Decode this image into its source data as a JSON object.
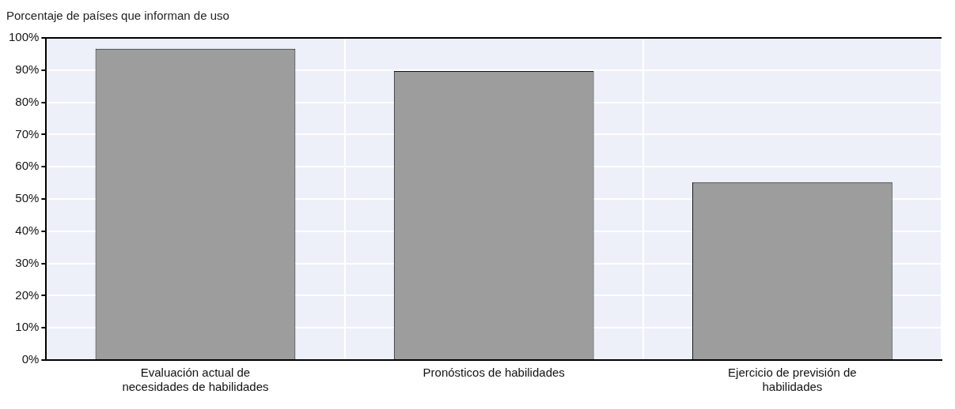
{
  "chart_data": {
    "type": "bar",
    "title": "Porcentaje de países que informan de uso",
    "categories": [
      "Evaluación actual de necesidades de habilidades",
      "Pronósticos de habilidades",
      "Ejercicio de previsión de habilidades"
    ],
    "values": [
      96.6,
      89.7,
      55.2
    ],
    "color": "#9d9d9d",
    "ylim": [
      0,
      100
    ],
    "yticks": [
      {
        "value": 0,
        "label": "0%"
      },
      {
        "value": 10,
        "label": "10%"
      },
      {
        "value": 20,
        "label": "20%"
      },
      {
        "value": 30,
        "label": "30%"
      },
      {
        "value": 40,
        "label": "40%"
      },
      {
        "value": 50,
        "label": "50%"
      },
      {
        "value": 60,
        "label": "60%"
      },
      {
        "value": 70,
        "label": "70%"
      },
      {
        "value": 80,
        "label": "80%"
      },
      {
        "value": 90,
        "label": "90%"
      },
      {
        "value": 100,
        "label": "100%"
      }
    ],
    "grid": true
  }
}
